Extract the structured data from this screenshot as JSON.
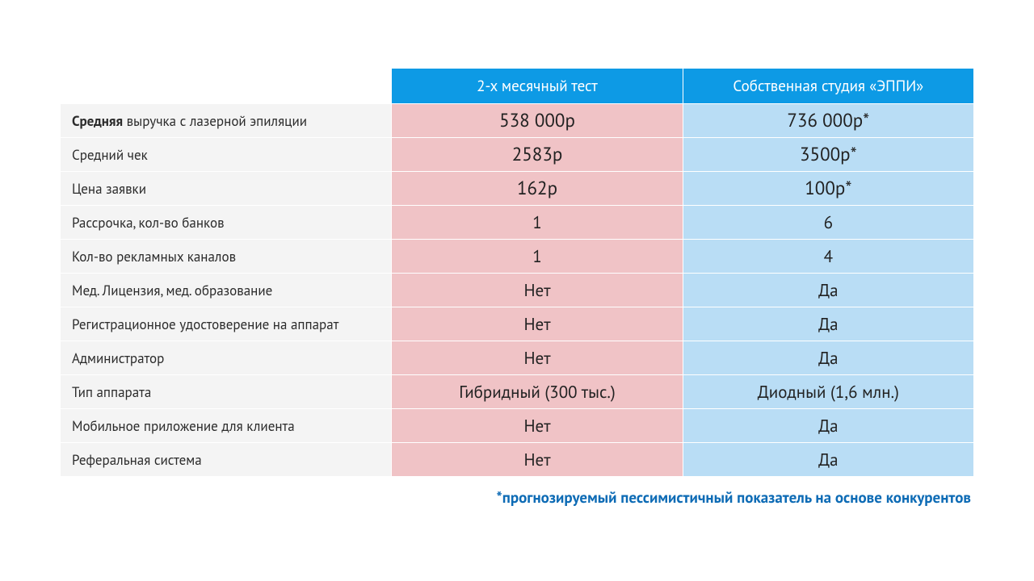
{
  "table": {
    "header": {
      "col1": "2-х месячный тест",
      "col2": "Собственная студия «ЭППИ»"
    },
    "rows": [
      {
        "label_strong": "Средняя",
        "label_rest": " выручка с лазерной эпиляции",
        "col1": "538 000р",
        "col2": "736 000р*",
        "big": true
      },
      {
        "label": "Средний чек",
        "col1": "2583р",
        "col2": "3500р*",
        "big": true
      },
      {
        "label": "Цена заявки",
        "col1": "162р",
        "col2": "100р*",
        "big": true
      },
      {
        "label": "Рассрочка, кол-во банков",
        "col1": "1",
        "col2": "6"
      },
      {
        "label": "Кол-во рекламных каналов",
        "col1": "1",
        "col2": "4"
      },
      {
        "label": "Мед. Лицензия, мед. образование",
        "col1": "Нет",
        "col2": "Да"
      },
      {
        "label": "Регистрационное удостоверение  на аппарат",
        "col1": "Нет",
        "col2": "Да"
      },
      {
        "label": "Администратор",
        "col1": "Нет",
        "col2": "Да"
      },
      {
        "label": "Тип аппарата",
        "col1": "Гибридный (300 тыс.)",
        "col2": "Диодный (1,6 млн.)"
      },
      {
        "label": "Мобильное приложение для клиента",
        "col1": "Нет",
        "col2": "Да"
      },
      {
        "label": "Реферальная система",
        "col1": "Нет",
        "col2": "Да"
      }
    ]
  },
  "footnote": "*прогнозируемый пессимистичный показатель на основе конкурентов",
  "colors": {
    "header_bg": "#0d9ae5",
    "header_text": "#ffffff",
    "label_bg": "#f4f4f4",
    "col1_bg": "#f0c3c6",
    "col2_bg": "#b9ddf5",
    "footnote_color": "#0d6bb5",
    "border_color": "#ffffff"
  }
}
